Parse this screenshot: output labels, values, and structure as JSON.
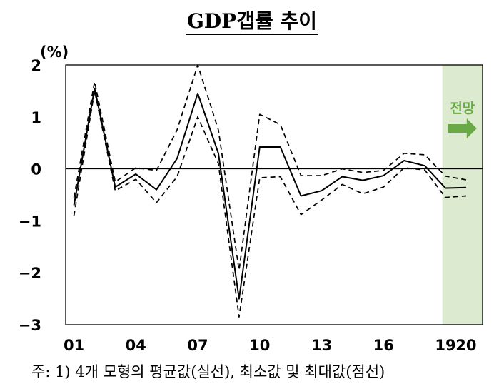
{
  "chart_data": {
    "type": "line",
    "title": "GDP갭률 추이",
    "unit_label": "(%)",
    "ylim": [
      -3,
      2
    ],
    "y_ticks": [
      "2",
      "1",
      "0",
      "−1",
      "−2",
      "−3"
    ],
    "y_tick_values": [
      2,
      1,
      0,
      -1,
      -2,
      -3
    ],
    "xlim": [
      2000.6,
      2020.8
    ],
    "x_tick_labels": [
      "01",
      "04",
      "07",
      "10",
      "13",
      "16",
      "19",
      "20"
    ],
    "x_tick_values": [
      2001,
      2004,
      2007,
      2010,
      2013,
      2016,
      2019,
      2020
    ],
    "x": [
      2001,
      2002,
      2003,
      2004,
      2005,
      2006,
      2007,
      2008,
      2009,
      2010,
      2011,
      2012,
      2013,
      2014,
      2015,
      2016,
      2017,
      2018,
      2019,
      2020
    ],
    "series": [
      {
        "name": "평균값",
        "style": "solid",
        "values": [
          -0.7,
          1.55,
          -0.35,
          -0.1,
          -0.4,
          0.2,
          1.45,
          0.3,
          -2.5,
          0.42,
          0.42,
          -0.52,
          -0.42,
          -0.15,
          -0.22,
          -0.13,
          0.16,
          0.06,
          -0.37,
          -0.36
        ]
      },
      {
        "name": "최소값",
        "style": "dashed",
        "values": [
          -0.9,
          1.5,
          -0.42,
          -0.2,
          -0.65,
          -0.15,
          1.0,
          0.1,
          -2.85,
          -0.17,
          -0.15,
          -0.88,
          -0.6,
          -0.3,
          -0.48,
          -0.35,
          0.02,
          -0.02,
          -0.55,
          -0.52
        ]
      },
      {
        "name": "최대값",
        "style": "dashed",
        "values": [
          -0.55,
          1.68,
          -0.25,
          0.02,
          -0.03,
          0.75,
          2.0,
          0.75,
          -1.95,
          1.05,
          0.85,
          -0.13,
          -0.13,
          0.0,
          -0.07,
          -0.03,
          0.3,
          0.27,
          -0.14,
          -0.21
        ]
      }
    ],
    "forecast": {
      "label": "전망",
      "from": 2018.85,
      "to": 2020.8,
      "color": "#dcebd0",
      "accent": "#6aaa46"
    },
    "note": "주: 1) 4개 모형의 평균값(실선), 최소값 및 최대값(점선)"
  }
}
